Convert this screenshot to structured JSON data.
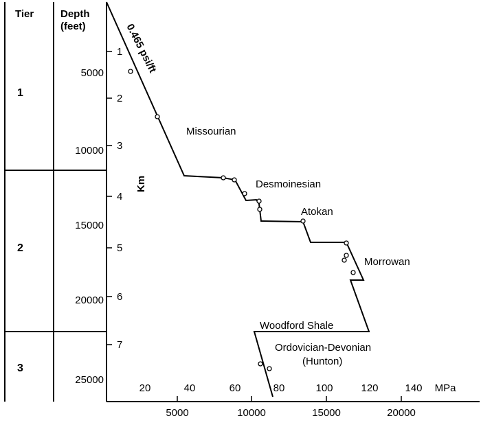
{
  "table": {
    "tier_header": "Tier",
    "depth_header_line1": "Depth",
    "depth_header_line2": "(feet)",
    "tiers": [
      "1",
      "2",
      "3"
    ]
  },
  "axes": {
    "depth_feet_ticks": [
      "5000",
      "10000",
      "15000",
      "20000",
      "25000"
    ],
    "km_ticks": [
      "1",
      "2",
      "3",
      "4",
      "5",
      "6",
      "7"
    ],
    "km_label": "Km",
    "mpa_ticks": [
      "20",
      "40",
      "60",
      "80",
      "100",
      "120",
      "140"
    ],
    "mpa_label": "MPa",
    "psi_ticks": [
      "5000",
      "10000",
      "15000",
      "20000"
    ]
  },
  "gradient_label": "0.465 psi/ft",
  "formations": {
    "missourian": "Missourian",
    "desmoinesian": "Desmoinesian",
    "atokan": "Atokan",
    "morrowan": "Morrowan",
    "woodford": "Woodford Shale",
    "ordovician": "Ordovician-Devonian",
    "hunton": "(Hunton)"
  }
}
